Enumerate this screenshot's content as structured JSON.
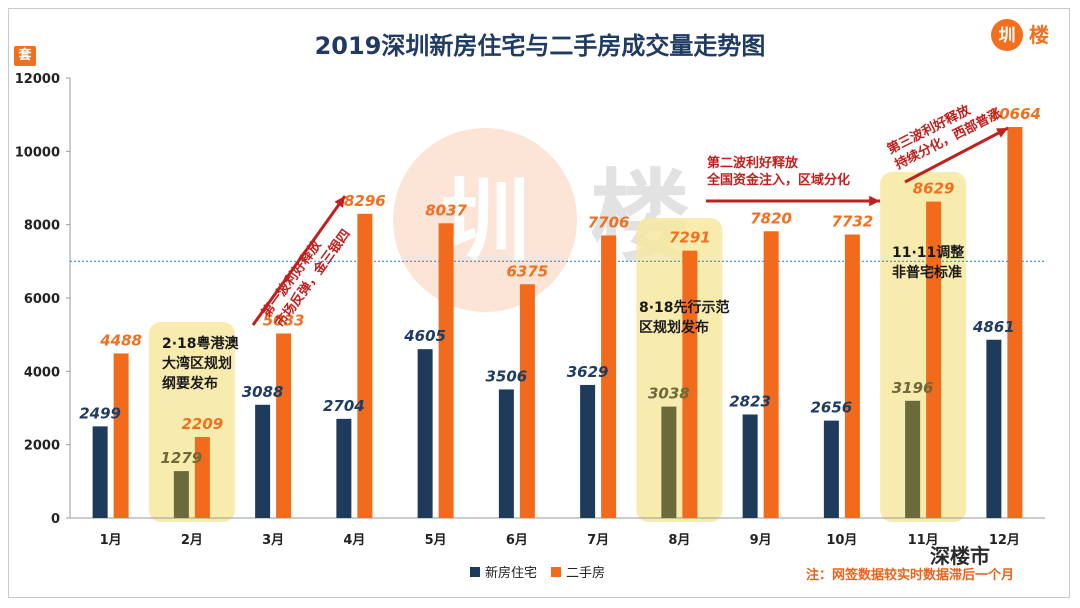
{
  "title": "2019深圳新房住宅与二手房成交量走势图",
  "unit_badge": "套",
  "logo_text": "圳楼",
  "note": "注：网签数据较实时数据滞后一个月",
  "watermark": "深楼市",
  "colors": {
    "new_house": "#1f3b5c",
    "second_hand": "#f26a1b",
    "highlight_bar_new": "#6b6a3a",
    "label_new": "#1f3b63",
    "label_second": "#f07020",
    "annotation_arrow": "#c0201e",
    "highlight_box": "#f7e8a0",
    "reference_line": "#3b8bd0"
  },
  "annotations": [
    {
      "lines": [
        "2·18粤港澳",
        "大湾区规划",
        "纲要发布"
      ]
    },
    {
      "lines": [
        "8·18先行示范",
        "区规划发布"
      ]
    },
    {
      "lines": [
        "11·11调整",
        "非普宅标准"
      ]
    },
    {
      "lines": [
        "第一波利好释放",
        "市场反弹，金三银四"
      ]
    },
    {
      "lines": [
        "第二波利好释放",
        "全国资金注入，区域分化"
      ]
    },
    {
      "lines": [
        "第三波利好释放",
        "持续分化，西部普涨"
      ]
    }
  ],
  "chart_data": {
    "type": "bar",
    "title": "2019深圳新房住宅与二手房成交量走势图",
    "categories": [
      "1月",
      "2月",
      "3月",
      "4月",
      "5月",
      "6月",
      "7月",
      "8月",
      "9月",
      "10月",
      "11月",
      "12月"
    ],
    "series": [
      {
        "name": "新房住宅",
        "values": [
          2499,
          1279,
          3088,
          2704,
          4605,
          3506,
          3629,
          3038,
          2823,
          2656,
          3196,
          4861
        ]
      },
      {
        "name": "二手房",
        "values": [
          4488,
          2209,
          5033,
          8296,
          8037,
          6375,
          7706,
          7291,
          7820,
          7732,
          8629,
          10664
        ]
      }
    ],
    "ylim": [
      0,
      12000
    ],
    "yticks": [
      0,
      2000,
      4000,
      6000,
      8000,
      10000,
      12000
    ],
    "reference_line": 7000,
    "highlighted_months": [
      "2月",
      "8月",
      "11月"
    ],
    "xlabel": "",
    "ylabel": "套",
    "legend_position": "bottom"
  }
}
